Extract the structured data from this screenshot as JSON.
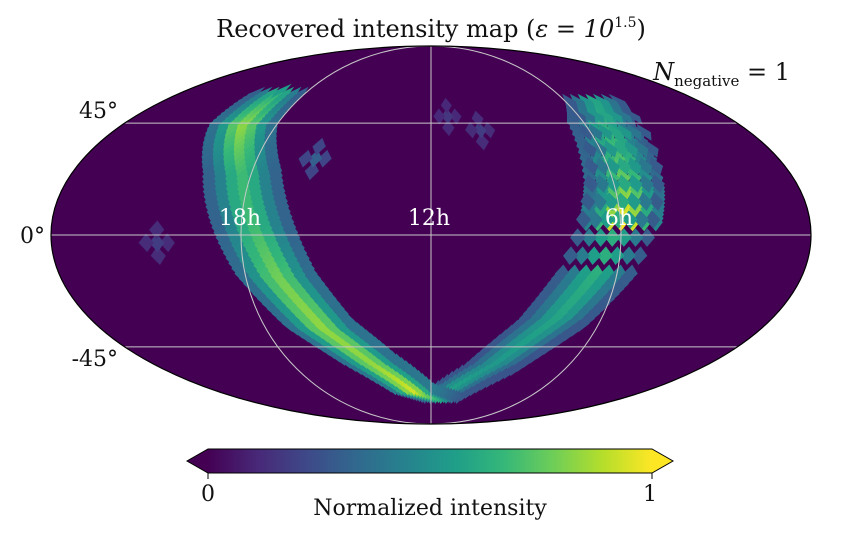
{
  "chart_data": {
    "type": "heatmap",
    "projection": "mollweide",
    "title": "Recovered intensity map (ε = 10^1.5)",
    "title_parts": {
      "main": "Recovered intensity map (",
      "eps": "ε = 10",
      "exp": "1.5",
      "close": ")"
    },
    "annotation": {
      "text": "N_negative = 1",
      "main": "N",
      "sub": "negative",
      "rest": " = 1",
      "placement": "top-right"
    },
    "lat_labels": [
      "45°",
      "0°",
      "-45°"
    ],
    "lat_values": [
      45,
      0,
      -45
    ],
    "lon_labels": [
      "18h",
      "12h",
      "6h"
    ],
    "lon_values": [
      -90,
      0,
      90
    ],
    "grid": true,
    "colorbar": {
      "label": "Normalized intensity",
      "min_label": "0",
      "max_label": "1",
      "range": [
        0,
        1
      ],
      "colormap": "viridis",
      "extend": "both"
    },
    "colormap_stops": [
      "#440154",
      "#482878",
      "#3e4989",
      "#31688e",
      "#26828e",
      "#1f9e89",
      "#35b779",
      "#6ece58",
      "#b5de2b",
      "#fde725"
    ],
    "intensity_band": {
      "description_of_values": "lon/lat in degrees (longitude positive to the left, 18h at -90), value normalized 0-1",
      "points": [
        {
          "lon": -90,
          "lat": 5,
          "value": 0.97
        },
        {
          "lon": -95,
          "lat": 20,
          "value": 0.7
        },
        {
          "lon": -100,
          "lat": 45,
          "value": 0.55
        },
        {
          "lon": -110,
          "lat": 55,
          "value": 0.5
        },
        {
          "lon": -80,
          "lat": -15,
          "value": 0.55
        },
        {
          "lon": -65,
          "lat": -35,
          "value": 0.5
        },
        {
          "lon": -40,
          "lat": -55,
          "value": 0.45
        },
        {
          "lon": -10,
          "lat": -70,
          "value": 0.5
        },
        {
          "lon": 15,
          "lat": -65,
          "value": 0.85
        },
        {
          "lon": 40,
          "lat": -50,
          "value": 0.75
        },
        {
          "lon": 60,
          "lat": -35,
          "value": 0.75
        },
        {
          "lon": 75,
          "lat": -15,
          "value": 0.7
        },
        {
          "lon": 85,
          "lat": 5,
          "value": 0.6
        },
        {
          "lon": 95,
          "lat": 25,
          "value": 0.6
        },
        {
          "lon": 110,
          "lat": 45,
          "value": 0.75
        },
        {
          "lon": 110,
          "lat": 60,
          "value": 0.55
        }
      ]
    }
  }
}
